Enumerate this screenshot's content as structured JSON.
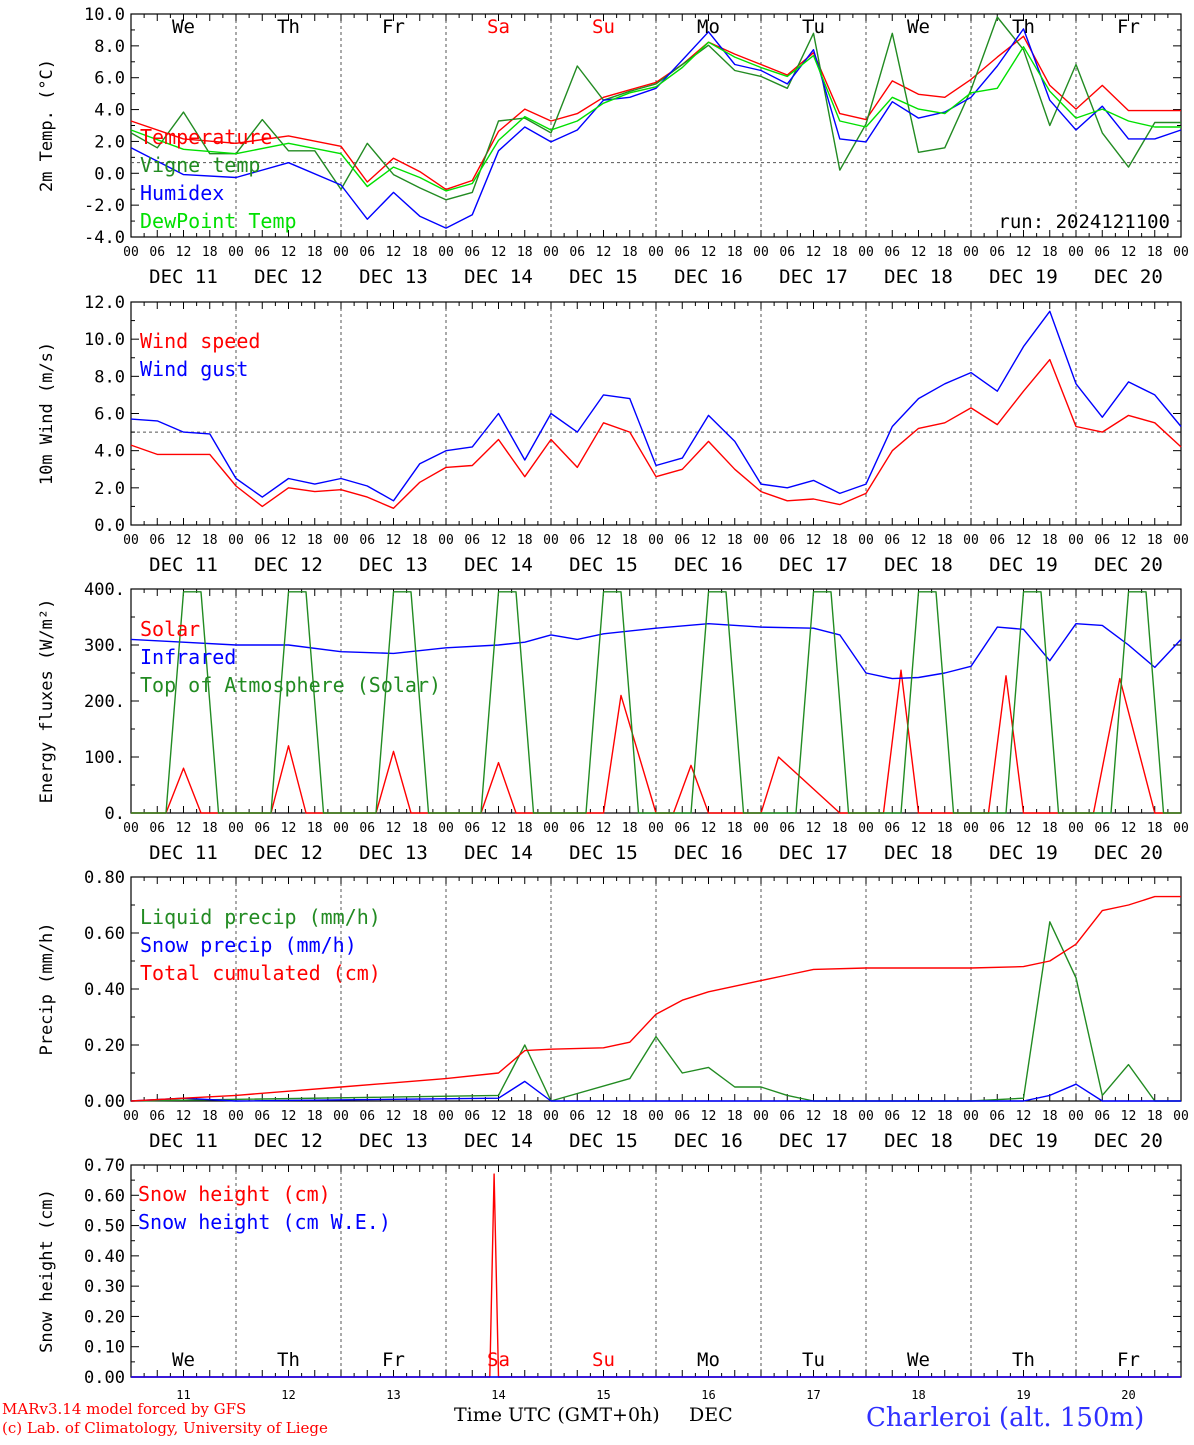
{
  "run_label": "run: 2024121100",
  "time_label": "Time UTC (GMT+0h)",
  "month_label": "DEC",
  "date_labels": [
    "DEC 11",
    "DEC 12",
    "DEC 13",
    "DEC 14",
    "DEC 15",
    "DEC 16",
    "DEC 17",
    "DEC 18",
    "DEC 19",
    "DEC 20"
  ],
  "day_numbers": [
    "11",
    "12",
    "13",
    "14",
    "15",
    "16",
    "17",
    "18",
    "19",
    "20"
  ],
  "weekdays": [
    {
      "text": "We",
      "color": "#000000"
    },
    {
      "text": "Th",
      "color": "#000000"
    },
    {
      "text": "Fr",
      "color": "#000000"
    },
    {
      "text": "Sa",
      "color": "#ff0000"
    },
    {
      "text": "Su",
      "color": "#ff0000"
    },
    {
      "text": "Mo",
      "color": "#000000"
    },
    {
      "text": "Tu",
      "color": "#000000"
    },
    {
      "text": "We",
      "color": "#000000"
    },
    {
      "text": "Th",
      "color": "#000000"
    },
    {
      "text": "Fr",
      "color": "#000000"
    }
  ],
  "hour_ticks": [
    "00",
    "06",
    "12",
    "18"
  ],
  "hour_end": "00",
  "footer": {
    "model": "MARv3.14 model forced by GFS",
    "lab": "(c) Lab. of Climatology, University of Liege",
    "station": "Charleroi (alt. 150m)"
  },
  "colors": {
    "red": "#ff0000",
    "green": "#228b22",
    "blue": "#0000ff",
    "lightgreen": "#00e000",
    "axis": "#000000",
    "station": "#3030ff"
  },
  "chart_data": [
    {
      "type": "line",
      "ylabel": "2m Temp. (°C)",
      "ylim": [
        -5,
        10
      ],
      "yticks": [
        "10.0",
        "8.0",
        "6.0",
        "4.0",
        "2.0",
        "0.0",
        "-2.0",
        "-4.0"
      ],
      "x_unit": "hours since 2024-12-11 00 UTC",
      "ref_line": 0,
      "series": [
        {
          "name": "Temperature",
          "color": "red",
          "x": [
            0,
            12,
            24,
            36,
            48,
            54,
            60,
            66,
            72,
            78,
            84,
            90,
            96,
            102,
            108,
            114,
            120,
            126,
            132,
            138,
            144,
            150,
            156,
            162,
            168,
            174,
            180,
            186,
            192,
            198,
            204,
            210,
            216,
            222,
            228,
            234,
            240
          ],
          "values": [
            2.8,
            1.6,
            1.3,
            1.8,
            1.1,
            -1.3,
            0.3,
            -0.6,
            -1.8,
            -1.2,
            2.1,
            3.6,
            2.8,
            3.3,
            4.4,
            4.9,
            5.4,
            6.6,
            8.1,
            7.3,
            6.6,
            5.9,
            7.4,
            3.3,
            2.9,
            5.5,
            4.6,
            4.4,
            5.6,
            7.1,
            8.5,
            5.2,
            3.6,
            5.2,
            3.5,
            3.5,
            3.5
          ]
        },
        {
          "name": "Vigne temp",
          "color": "green",
          "x": [
            0,
            6,
            12,
            18,
            24,
            30,
            36,
            42,
            48,
            54,
            60,
            66,
            72,
            78,
            84,
            90,
            96,
            102,
            108,
            114,
            120,
            126,
            132,
            138,
            144,
            150,
            156,
            162,
            168,
            174,
            180,
            186,
            192,
            198,
            204,
            210,
            216,
            222,
            228,
            234,
            240
          ],
          "values": [
            2.0,
            1.0,
            3.4,
            0.6,
            0.6,
            2.9,
            0.8,
            0.8,
            -1.8,
            1.3,
            -0.8,
            -1.7,
            -2.5,
            -2.0,
            2.8,
            3.0,
            2.0,
            6.5,
            4.2,
            4.8,
            5.3,
            6.6,
            7.9,
            6.2,
            5.8,
            5.0,
            8.7,
            -0.5,
            2.6,
            8.7,
            0.7,
            1.0,
            4.9,
            9.8,
            7.6,
            2.5,
            6.6,
            2.0,
            -0.3,
            2.7,
            2.7
          ]
        },
        {
          "name": "Humidex",
          "color": "blue",
          "x": [
            0,
            12,
            24,
            36,
            48,
            54,
            60,
            66,
            72,
            78,
            84,
            90,
            96,
            102,
            108,
            114,
            120,
            126,
            132,
            138,
            144,
            150,
            156,
            162,
            168,
            174,
            180,
            186,
            192,
            198,
            204,
            210,
            216,
            222,
            228,
            234,
            240
          ],
          "values": [
            1.0,
            -0.8,
            -1.0,
            0.0,
            -1.5,
            -3.8,
            -2.0,
            -3.6,
            -4.4,
            -3.5,
            0.8,
            2.4,
            1.4,
            2.2,
            4.2,
            4.4,
            5.0,
            6.9,
            8.8,
            6.6,
            6.2,
            5.3,
            7.6,
            1.6,
            1.4,
            4.1,
            3.0,
            3.4,
            4.4,
            6.5,
            9.0,
            4.2,
            2.2,
            3.8,
            1.6,
            1.6,
            2.2
          ]
        },
        {
          "name": "DewPoint Temp",
          "color": "lightgreen",
          "x": [
            0,
            12,
            24,
            36,
            48,
            54,
            60,
            66,
            72,
            78,
            84,
            90,
            96,
            102,
            108,
            114,
            120,
            126,
            132,
            138,
            144,
            150,
            156,
            162,
            168,
            174,
            180,
            186,
            192,
            198,
            204,
            210,
            216,
            222,
            228,
            234,
            240
          ],
          "values": [
            2.2,
            0.9,
            0.6,
            1.3,
            0.6,
            -1.6,
            -0.3,
            -1.0,
            -1.9,
            -1.4,
            1.5,
            3.1,
            2.2,
            2.8,
            4.0,
            4.7,
            5.1,
            6.4,
            8.1,
            7.1,
            6.4,
            5.8,
            7.2,
            2.8,
            2.4,
            4.4,
            3.6,
            3.3,
            4.7,
            5.0,
            7.8,
            4.8,
            3.0,
            3.6,
            2.8,
            2.4,
            2.4
          ]
        }
      ]
    },
    {
      "type": "line",
      "ylabel": "10m Wind (m/s)",
      "ylim": [
        0,
        12
      ],
      "yticks": [
        "12.0",
        "10.0",
        "8.0",
        "6.0",
        "4.0",
        "2.0",
        "0.0"
      ],
      "x_unit": "hours since 2024-12-11 00 UTC",
      "ref_line": 5,
      "series": [
        {
          "name": "Wind speed",
          "color": "red",
          "x": [
            0,
            6,
            12,
            18,
            24,
            30,
            36,
            42,
            48,
            54,
            60,
            66,
            72,
            78,
            84,
            90,
            96,
            102,
            108,
            114,
            120,
            126,
            132,
            138,
            144,
            150,
            156,
            162,
            168,
            174,
            180,
            186,
            192,
            198,
            204,
            210,
            216,
            222,
            228,
            234,
            240
          ],
          "values": [
            4.3,
            3.8,
            3.8,
            3.8,
            2.1,
            1.0,
            2.0,
            1.8,
            1.9,
            1.5,
            0.9,
            2.3,
            3.1,
            3.2,
            4.6,
            2.6,
            4.6,
            3.1,
            5.5,
            5.0,
            2.6,
            3.0,
            4.5,
            3.0,
            1.8,
            1.3,
            1.4,
            1.1,
            1.7,
            4.0,
            5.2,
            5.5,
            6.3,
            5.4,
            7.2,
            8.9,
            5.3,
            5.0,
            5.9,
            5.5,
            4.2
          ]
        },
        {
          "name": "Wind gust",
          "color": "blue",
          "x": [
            0,
            6,
            12,
            18,
            24,
            30,
            36,
            42,
            48,
            54,
            60,
            66,
            72,
            78,
            84,
            90,
            96,
            102,
            108,
            114,
            120,
            126,
            132,
            138,
            144,
            150,
            156,
            162,
            168,
            174,
            180,
            186,
            192,
            198,
            204,
            210,
            216,
            222,
            228,
            234,
            240
          ],
          "values": [
            5.7,
            5.6,
            5.0,
            4.9,
            2.5,
            1.5,
            2.5,
            2.2,
            2.5,
            2.1,
            1.3,
            3.3,
            4.0,
            4.2,
            6.0,
            3.5,
            6.0,
            5.0,
            7.0,
            6.8,
            3.2,
            3.6,
            5.9,
            4.5,
            2.2,
            2.0,
            2.4,
            1.7,
            2.2,
            5.3,
            6.8,
            7.6,
            8.2,
            7.2,
            9.6,
            11.5,
            7.6,
            5.8,
            7.7,
            7.0,
            5.3
          ]
        }
      ]
    },
    {
      "type": "line",
      "ylabel": "Energy fluxes (W/m²)",
      "ylim": [
        0,
        400
      ],
      "yticks": [
        "400.",
        "300.",
        "200.",
        "100.",
        "0."
      ],
      "x_unit": "hours since 2024-12-11 00 UTC",
      "series": [
        {
          "name": "Solar",
          "color": "red",
          "x": [
            0,
            8,
            12,
            16,
            32,
            36,
            40,
            56,
            60,
            64,
            80,
            84,
            88,
            102,
            108,
            112,
            120,
            124,
            128,
            132,
            140,
            144,
            148,
            162,
            168,
            172,
            176,
            180,
            184,
            188,
            196,
            200,
            204,
            210,
            220,
            226,
            234,
            240
          ],
          "values": [
            0,
            0,
            80,
            0,
            0,
            120,
            0,
            0,
            110,
            0,
            0,
            90,
            0,
            0,
            0,
            210,
            0,
            0,
            85,
            0,
            0,
            0,
            100,
            0,
            0,
            0,
            255,
            0,
            0,
            0,
            0,
            245,
            0,
            0,
            0,
            240,
            0,
            0
          ]
        },
        {
          "name": "Infrared",
          "color": "blue",
          "x": [
            0,
            12,
            24,
            36,
            48,
            60,
            72,
            84,
            90,
            96,
            102,
            108,
            120,
            132,
            144,
            156,
            162,
            168,
            174,
            180,
            186,
            192,
            198,
            204,
            210,
            216,
            222,
            228,
            234,
            240
          ],
          "values": [
            310,
            305,
            300,
            300,
            288,
            285,
            295,
            300,
            305,
            318,
            310,
            320,
            330,
            338,
            332,
            330,
            318,
            250,
            240,
            242,
            250,
            262,
            332,
            328,
            272,
            338,
            335,
            300,
            260,
            310
          ]
        },
        {
          "name": "Top of Atmosphere (Solar)",
          "color": "green",
          "x": [
            0,
            8,
            12,
            16,
            20,
            32,
            36,
            40,
            44,
            56,
            60,
            64,
            68,
            80,
            84,
            88,
            92,
            104,
            108,
            112,
            116,
            128,
            132,
            136,
            140,
            152,
            156,
            160,
            164,
            176,
            180,
            184,
            188,
            200,
            204,
            208,
            212,
            224,
            228,
            232,
            236,
            240
          ],
          "values": [
            0,
            0,
            395,
            395,
            0,
            0,
            395,
            395,
            0,
            0,
            395,
            395,
            0,
            0,
            395,
            395,
            0,
            0,
            395,
            395,
            0,
            0,
            395,
            395,
            0,
            0,
            395,
            395,
            0,
            0,
            395,
            395,
            0,
            0,
            395,
            395,
            0,
            0,
            395,
            395,
            0,
            0
          ]
        }
      ]
    },
    {
      "type": "line",
      "ylabel": "Precip (mm/h)",
      "ylim": [
        0,
        0.8
      ],
      "yticks": [
        "0.80",
        "0.60",
        "0.40",
        "0.20",
        "0.00"
      ],
      "x_unit": "hours since 2024-12-11 00 UTC",
      "series": [
        {
          "name": "Liquid precip (mm/h)",
          "color": "green",
          "x": [
            0,
            84,
            90,
            96,
            114,
            120,
            126,
            132,
            138,
            144,
            150,
            156,
            192,
            204,
            210,
            216,
            222,
            228,
            234,
            240
          ],
          "values": [
            0,
            0.02,
            0.2,
            0.0,
            0.08,
            0.23,
            0.1,
            0.12,
            0.05,
            0.05,
            0.02,
            0.0,
            0.0,
            0.01,
            0.64,
            0.44,
            0.02,
            0.13,
            0.0,
            0.0
          ]
        },
        {
          "name": "Snow precip (mm/h)",
          "color": "blue",
          "x": [
            0,
            12,
            24,
            84,
            90,
            96,
            204,
            210,
            216,
            222,
            240
          ],
          "values": [
            0,
            0.01,
            0.0,
            0.01,
            0.07,
            0.0,
            0.0,
            0.02,
            0.06,
            0.0,
            0.0
          ]
        },
        {
          "name": "Total cumulated (cm)",
          "color": "red",
          "x": [
            0,
            12,
            24,
            36,
            48,
            60,
            72,
            84,
            90,
            96,
            108,
            114,
            120,
            126,
            132,
            138,
            144,
            150,
            156,
            168,
            180,
            192,
            204,
            210,
            216,
            222,
            228,
            234,
            240
          ],
          "values": [
            0,
            0.01,
            0.02,
            0.035,
            0.05,
            0.065,
            0.08,
            0.1,
            0.18,
            0.185,
            0.19,
            0.21,
            0.31,
            0.36,
            0.39,
            0.41,
            0.43,
            0.45,
            0.47,
            0.475,
            0.475,
            0.475,
            0.48,
            0.5,
            0.56,
            0.68,
            0.7,
            0.73,
            0.73
          ]
        }
      ]
    },
    {
      "type": "line",
      "ylabel": "Snow height (cm)",
      "ylim": [
        0,
        0.7
      ],
      "yticks": [
        "0.70",
        "0.60",
        "0.50",
        "0.40",
        "0.30",
        "0.20",
        "0.10",
        "0.00"
      ],
      "x_unit": "hours since 2024-12-11 00 UTC",
      "series": [
        {
          "name": "Snow height (cm)",
          "color": "red",
          "x": [
            0,
            82,
            83,
            84,
            240
          ],
          "values": [
            0,
            0,
            0.67,
            0,
            0
          ]
        },
        {
          "name": "Snow height (cm W.E.)",
          "color": "blue",
          "x": [
            0,
            240
          ],
          "values": [
            0,
            0
          ]
        }
      ]
    }
  ]
}
